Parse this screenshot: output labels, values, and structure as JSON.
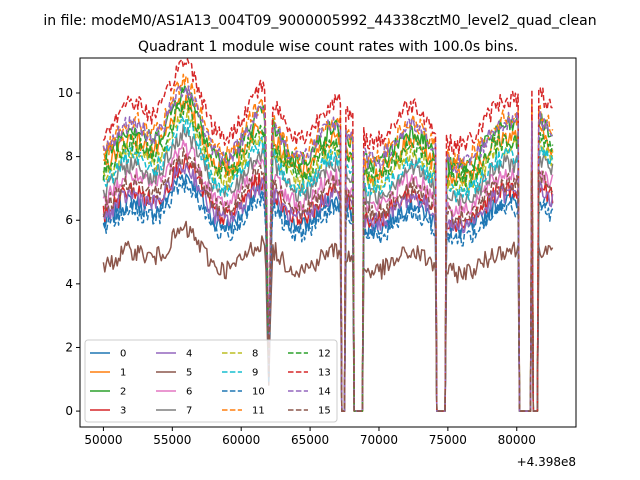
{
  "suptitle": "in file: modeM0/AS1A13_004T09_9000005992_44338cztM0_level2_quad_clean",
  "chart_data": {
    "type": "line",
    "title": "Quadrant 1 module wise count rates with 100.0s bins.",
    "xlabel": "",
    "ylabel": "",
    "x_offset_label": "+4.398e8",
    "xlim": [
      48300,
      84300
    ],
    "ylim": [
      -0.5,
      11.1
    ],
    "x_ticks": [
      50000,
      55000,
      60000,
      65000,
      70000,
      75000,
      80000
    ],
    "x_tick_labels": [
      "50000",
      "55000",
      "60000",
      "65000",
      "70000",
      "75000",
      "80000"
    ],
    "y_ticks": [
      0,
      2,
      4,
      6,
      8,
      10
    ],
    "y_tick_labels": [
      "0",
      "2",
      "4",
      "6",
      "8",
      "10"
    ],
    "x_range": [
      50000,
      82600
    ],
    "bin_size": 100,
    "gaps": [
      [
        67300,
        67500
      ],
      [
        68200,
        68800
      ],
      [
        74200,
        74800
      ],
      [
        80200,
        81000
      ],
      [
        81200,
        81500
      ]
    ],
    "dip_near": [
      62000
    ],
    "grid": false,
    "legend_position": "lower-left",
    "legend_columns": 4,
    "series": [
      {
        "name": "0",
        "color": "#1f77b4",
        "dash": "solid",
        "baseline": 5.6
      },
      {
        "name": "1",
        "color": "#ff7f0e",
        "dash": "solid",
        "baseline": 7.3
      },
      {
        "name": "2",
        "color": "#2ca02c",
        "dash": "solid",
        "baseline": 7.6
      },
      {
        "name": "3",
        "color": "#d62728",
        "dash": "solid",
        "baseline": 5.9
      },
      {
        "name": "4",
        "color": "#9467bd",
        "dash": "solid",
        "baseline": 5.8
      },
      {
        "name": "5",
        "color": "#8c564b",
        "dash": "solid",
        "baseline": 4.3
      },
      {
        "name": "6",
        "color": "#e377c2",
        "dash": "solid",
        "baseline": 6.3
      },
      {
        "name": "7",
        "color": "#7f7f7f",
        "dash": "solid",
        "baseline": 6.6
      },
      {
        "name": "8",
        "color": "#bcbd22",
        "dash": "dashed",
        "baseline": 7.0
      },
      {
        "name": "9",
        "color": "#17becf",
        "dash": "dashed",
        "baseline": 6.8
      },
      {
        "name": "10",
        "color": "#1f77b4",
        "dash": "dashed",
        "baseline": 5.4
      },
      {
        "name": "11",
        "color": "#ff7f0e",
        "dash": "dashed",
        "baseline": 7.8
      },
      {
        "name": "12",
        "color": "#2ca02c",
        "dash": "dashed",
        "baseline": 7.2
      },
      {
        "name": "13",
        "color": "#d62728",
        "dash": "dashed",
        "baseline": 8.3
      },
      {
        "name": "14",
        "color": "#9467bd",
        "dash": "dashed",
        "baseline": 7.7
      },
      {
        "name": "15",
        "color": "#8c564b",
        "dash": "dashed",
        "baseline": 6.1
      }
    ]
  }
}
